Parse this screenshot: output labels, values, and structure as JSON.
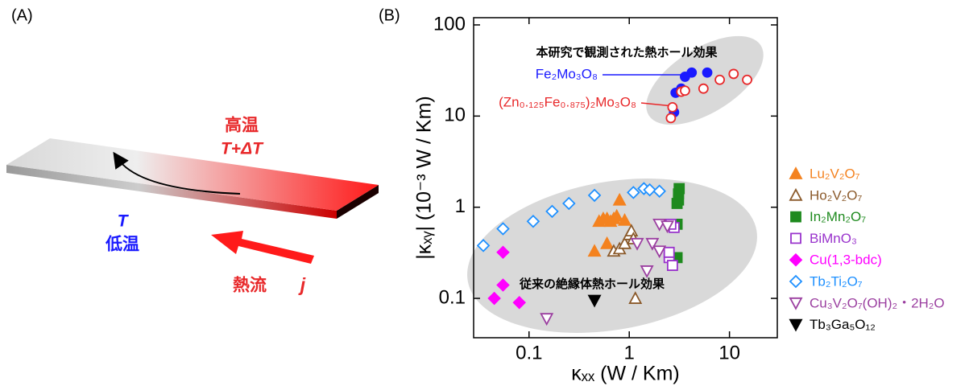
{
  "panel_a": {
    "label": "(A)",
    "hot": "高温",
    "hot_temp": "T+ΔT",
    "cold_temp": "T",
    "cold": "低温",
    "flow": "熱流",
    "flow_symbol": "j"
  },
  "panel_b_label": "(B)",
  "chart_data": {
    "type": "scatter",
    "xlabel": "κₓₓ (W / Km)",
    "ylabel": "|κₓᵧ| (10⁻³ W / Km)",
    "x_log": true,
    "y_log": true,
    "xlim": [
      0.028,
      30
    ],
    "ylim": [
      0.037,
      120
    ],
    "xticks": [
      0.1,
      1,
      10
    ],
    "yticks": [
      0.1,
      1,
      10,
      100
    ],
    "annotations": [
      "本研究で観測された熱ホール効果",
      "従来の絶縁体熱ホール効果"
    ],
    "series": [
      {
        "name": "Fe₂Mo₃O₈",
        "color": "#1a1aff",
        "marker": "circle",
        "filled": true,
        "label_in_plot": true,
        "x": [
          2.8,
          2.9,
          3.3,
          3.6,
          4.2,
          6
        ],
        "values": [
          11,
          18,
          20,
          27,
          30,
          30
        ]
      },
      {
        "name": "(Zn₀.₁₂₅Fe₀.₈₇₅)₂Mo₃O₈",
        "color": "#e8282a",
        "marker": "circle",
        "filled": false,
        "label_in_plot": true,
        "x": [
          2.6,
          2.7,
          3.3,
          3.6,
          5.5,
          8,
          11,
          15
        ],
        "values": [
          9.5,
          12.5,
          18.5,
          19,
          20,
          25,
          29,
          25
        ]
      },
      {
        "name": "Lu₂V₂O₇",
        "color": "#f4821f",
        "marker": "triangle-up",
        "filled": true,
        "x": [
          0.45,
          0.5,
          0.55,
          0.6,
          0.65,
          0.7,
          0.75,
          0.8,
          0.9,
          0.6
        ],
        "values": [
          0.33,
          0.7,
          0.75,
          0.75,
          0.7,
          0.75,
          0.8,
          1.2,
          0.72,
          0.4
        ]
      },
      {
        "name": "Ho₂V₂O₇",
        "color": "#8b5a2b",
        "marker": "triangle-up",
        "filled": false,
        "x": [
          0.7,
          0.8,
          0.9,
          1.0,
          1.05,
          1.1,
          1.15
        ],
        "values": [
          0.33,
          0.35,
          0.4,
          0.5,
          0.55,
          0.45,
          0.1
        ]
      },
      {
        "name": "In₂Mn₂O₇",
        "color": "#1e8a1e",
        "marker": "square",
        "filled": true,
        "x": [
          3,
          3,
          3.1,
          3.1,
          3.15,
          3
        ],
        "values": [
          0.28,
          1.1,
          1.2,
          1.4,
          1.6,
          0.65
        ]
      },
      {
        "name": "BiMnO₃",
        "color": "#9933cc",
        "marker": "square",
        "filled": false,
        "x": [
          2.5,
          2.7,
          2.8,
          2.6,
          2.5
        ],
        "values": [
          0.28,
          0.23,
          0.6,
          0.65,
          0.32
        ]
      },
      {
        "name": "Cu(1,3-bdc)",
        "color": "#ff00ff",
        "marker": "diamond",
        "filled": true,
        "x": [
          0.055,
          0.055,
          0.045,
          0.08
        ],
        "values": [
          0.32,
          0.14,
          0.1,
          0.09
        ]
      },
      {
        "name": "Tb₂Ti₂O₇",
        "color": "#1e90ff",
        "marker": "diamond",
        "filled": false,
        "x": [
          0.035,
          0.055,
          0.11,
          0.17,
          0.25,
          0.45,
          1.1,
          1.4,
          1.6,
          2
        ],
        "values": [
          0.38,
          0.58,
          0.7,
          0.9,
          1.1,
          1.35,
          1.45,
          1.6,
          1.55,
          1.5
        ]
      },
      {
        "name": "Cu₃V₂O₇(OH)₂・2H₂O",
        "color": "#9b3fa0",
        "marker": "triangle-down",
        "filled": false,
        "x": [
          0.15,
          1.2,
          1.5,
          1.7,
          2.0,
          2.0,
          2.4
        ],
        "values": [
          0.06,
          0.4,
          0.2,
          0.4,
          0.33,
          0.65,
          0.62
        ]
      },
      {
        "name": "Tb₃Ga₅O₁₂",
        "color": "#000000",
        "marker": "triangle-down",
        "filled": true,
        "x": [
          0.45
        ],
        "values": [
          0.095
        ]
      }
    ]
  }
}
